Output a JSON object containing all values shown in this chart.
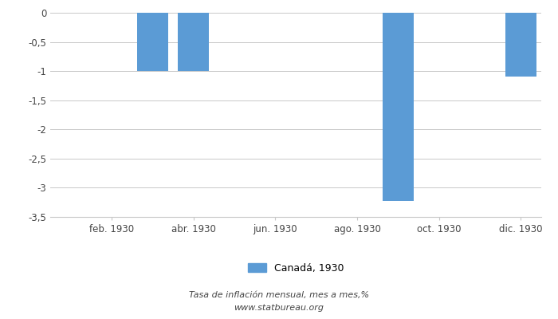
{
  "months": [
    1,
    2,
    3,
    4,
    5,
    6,
    7,
    8,
    9,
    10,
    11,
    12
  ],
  "values": [
    0,
    0,
    -1.0,
    -1.0,
    0,
    0,
    0,
    0,
    -3.23,
    0,
    0,
    -1.1
  ],
  "xtick_positions": [
    2,
    4,
    6,
    8,
    10,
    12
  ],
  "xtick_labels": [
    "feb. 1930",
    "abr. 1930",
    "jun. 1930",
    "ago. 1930",
    "oct. 1930",
    "dic. 1930"
  ],
  "bar_color": "#5b9bd5",
  "ylim": [
    -3.5,
    0.0
  ],
  "yticks": [
    0,
    -0.5,
    -1,
    -1.5,
    -2,
    -2.5,
    -3,
    -3.5
  ],
  "ytick_labels": [
    "0",
    "-0,5",
    "-1",
    "-1,5",
    "-2",
    "-2,5",
    "-3",
    "-3,5"
  ],
  "legend_label": "Canadá, 1930",
  "footer_line1": "Tasa de inflación mensual, mes a mes,%",
  "footer_line2": "www.statbureau.org",
  "background_color": "#ffffff",
  "grid_color": "#c8c8c8",
  "text_color": "#444444"
}
